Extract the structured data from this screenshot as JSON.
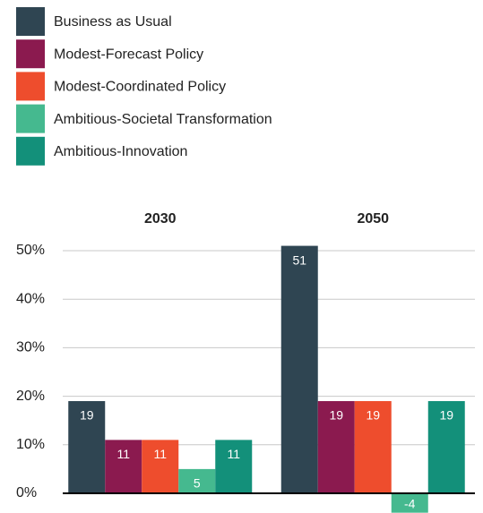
{
  "chart_data": {
    "type": "bar",
    "categories": [
      "2030",
      "2050"
    ],
    "series": [
      {
        "name": "Business as Usual",
        "color": "#2f4552",
        "values": [
          19,
          51
        ]
      },
      {
        "name": "Modest-Forecast Policy",
        "color": "#8b1a4f",
        "values": [
          11,
          19
        ]
      },
      {
        "name": "Modest-Coordinated Policy",
        "color": "#ee4d2d",
        "values": [
          11,
          19
        ]
      },
      {
        "name": "Ambitious-Societal Transformation",
        "color": "#45b98f",
        "values": [
          5,
          -4
        ]
      },
      {
        "name": "Ambitious-Innovation",
        "color": "#13907a",
        "values": [
          11,
          19
        ]
      }
    ],
    "ylim": [
      -4,
      50
    ],
    "yticks": [
      {
        "value": 0,
        "label": "0%"
      },
      {
        "value": 10,
        "label": "10%"
      },
      {
        "value": 20,
        "label": "20%"
      },
      {
        "value": 30,
        "label": "30%"
      },
      {
        "value": 40,
        "label": "40%"
      },
      {
        "value": 50,
        "label": "50%"
      }
    ],
    "grid": true,
    "legend": "top-left"
  }
}
